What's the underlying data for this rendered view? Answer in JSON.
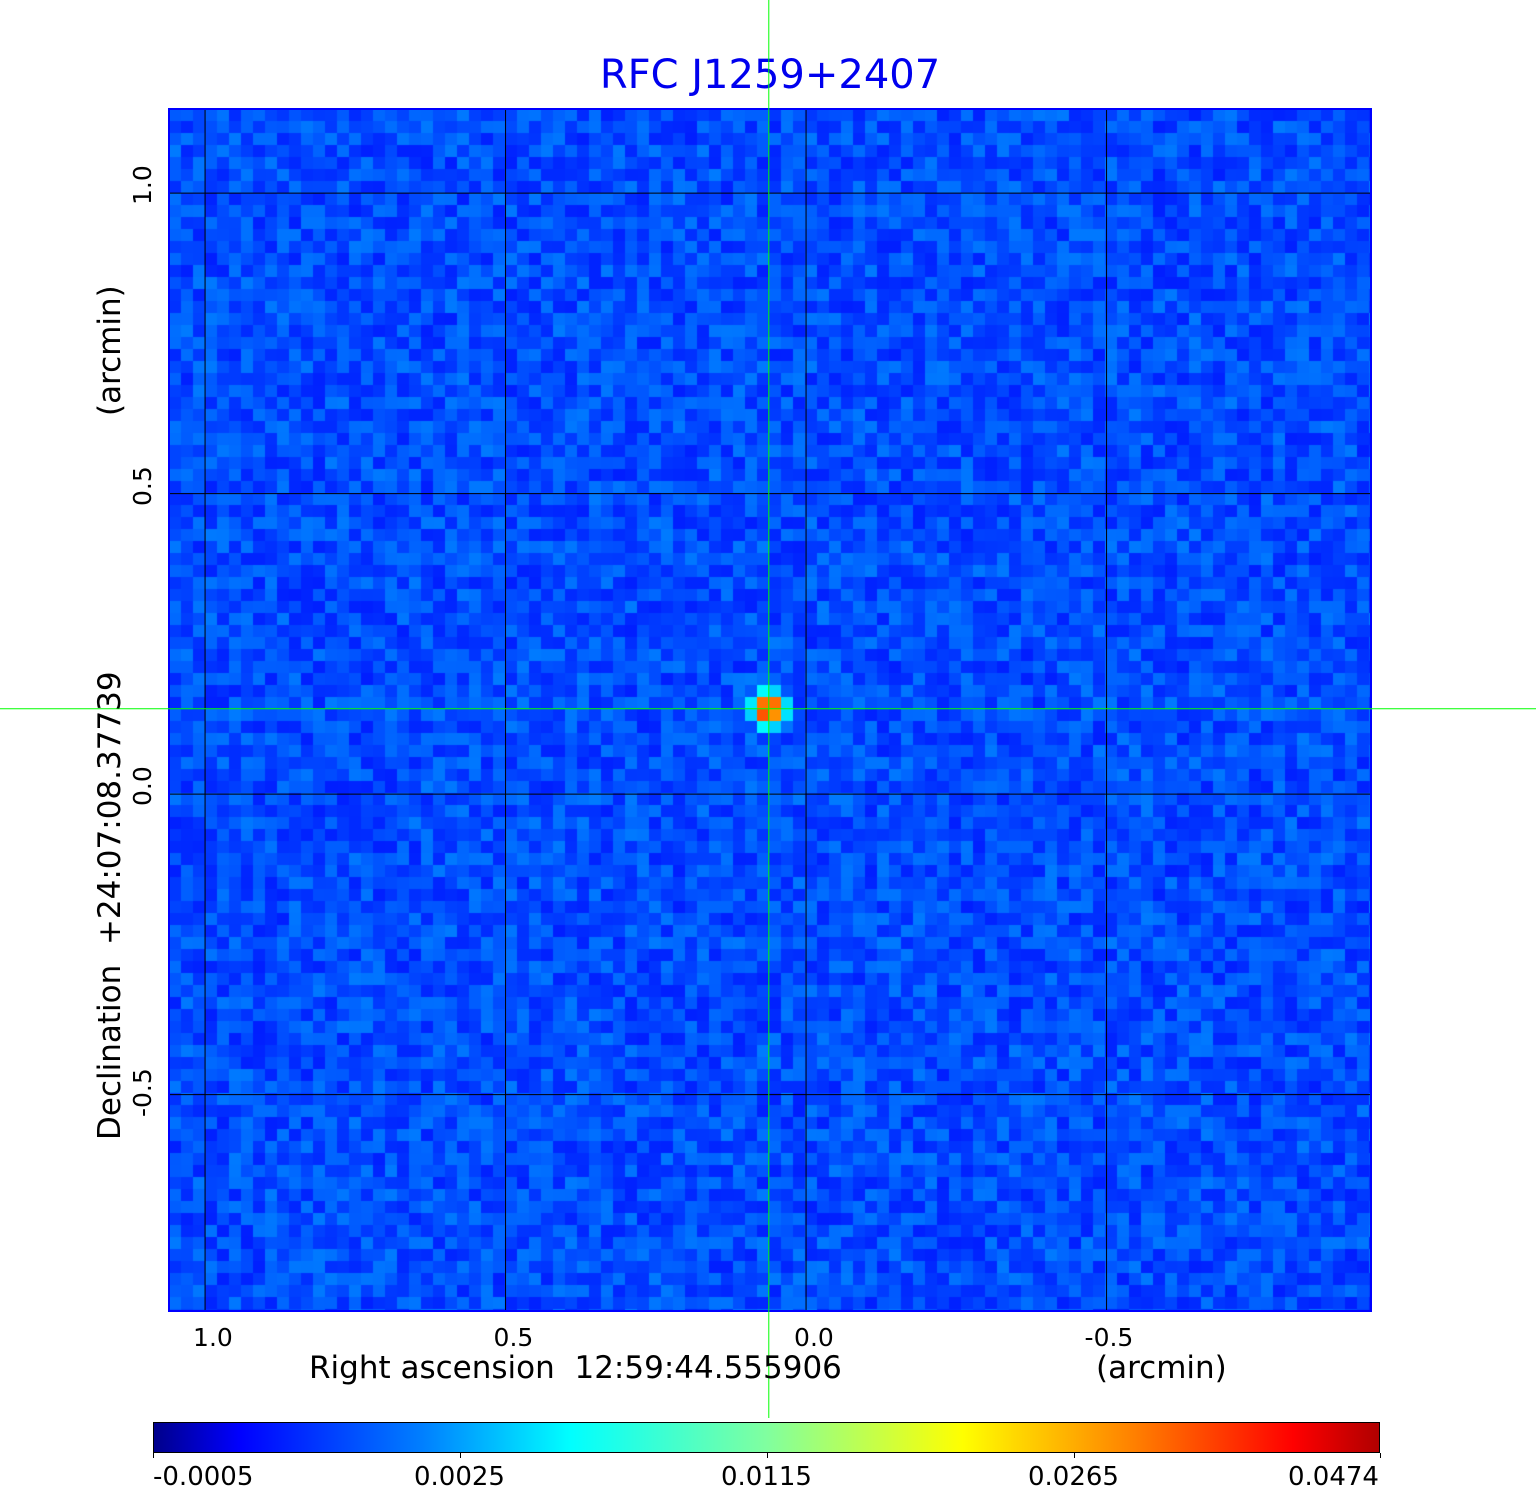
{
  "chart_data": {
    "type": "heatmap",
    "title": "RFC J1259+2407",
    "xlabel": "Right ascension  12:59:44.555906",
    "xlabel_unit": "(arcmin)",
    "ylabel": "Declination  +24:07:08.37739",
    "ylabel_unit": "(arcmin)",
    "x_ticks": [
      "1.0",
      "0.5",
      "0.0",
      "-0.5"
    ],
    "x_tick_values": [
      1.0,
      0.5,
      0.0,
      -0.5
    ],
    "y_ticks": [
      "1.0",
      "0.5",
      "0.0",
      "-0.5"
    ],
    "y_tick_values": [
      1.0,
      0.5,
      0.0,
      -0.5
    ],
    "xlim": [
      1.06,
      -0.94
    ],
    "ylim": [
      -0.86,
      1.14
    ],
    "grid": true,
    "crosshair": {
      "x": 0.062,
      "y": 0.142,
      "color": "#00ff00"
    },
    "source_peak": {
      "x": 0.062,
      "y": 0.142,
      "value": 0.0474
    },
    "colormap": "jet",
    "colorbar": {
      "ticks": [
        "-0.0005",
        "0.0025",
        "0.0115",
        "0.0265",
        "0.0474"
      ],
      "range": [
        -0.0005,
        0.0474
      ],
      "placement": "bottom"
    },
    "title_color": "#0000ee",
    "background_color": "#0a3cf5"
  }
}
